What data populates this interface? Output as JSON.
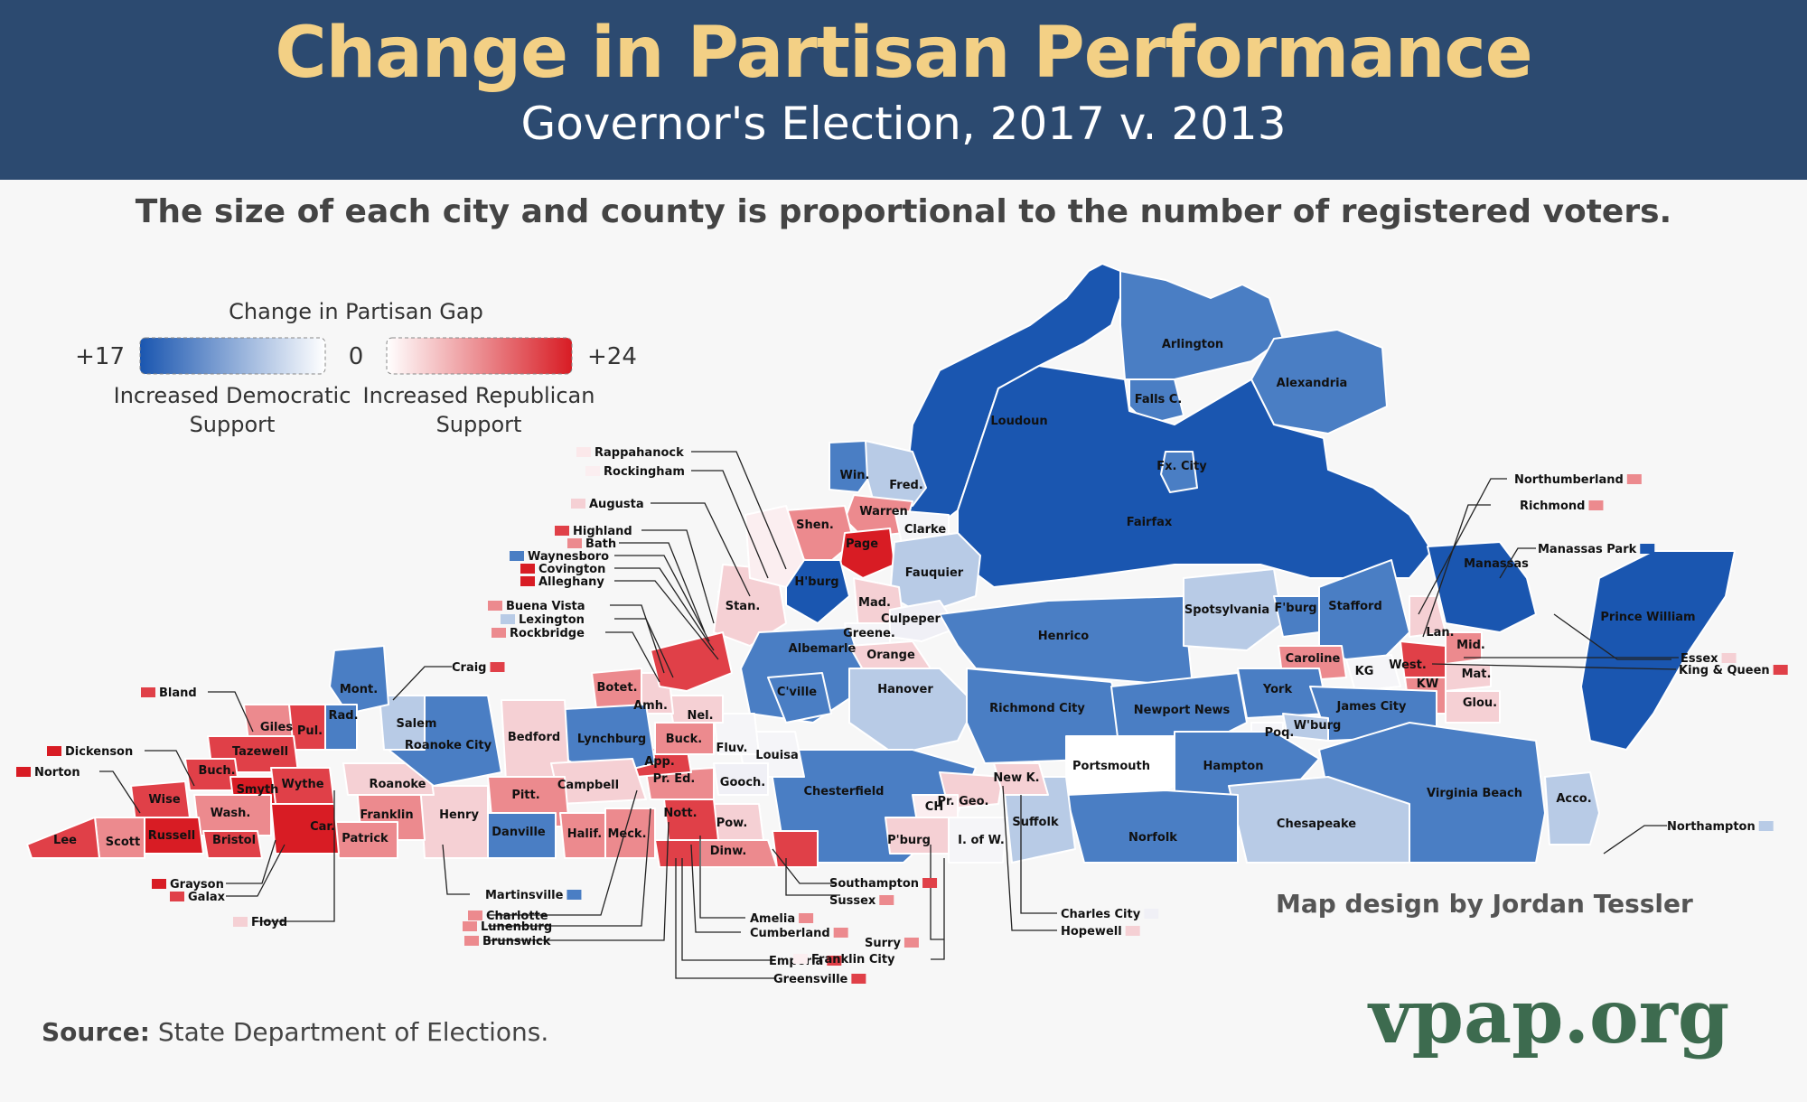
{
  "header": {
    "title": "Change in Partisan Performance",
    "subtitle": "Governor's Election, 2017 v. 2013"
  },
  "description": "The size of each city and county is proportional to the number of registered voters.",
  "legend": {
    "title": "Change in Partisan Gap",
    "dem_max": "+17",
    "zero": "0",
    "rep_max": "+24",
    "dem_line1": "Increased Democratic",
    "dem_line2": "Support",
    "rep_line1": "Increased Republican",
    "rep_line2": "Support"
  },
  "colors": {
    "dem_strong": "#1a56b0",
    "dem_mid": "#4a7ec4",
    "dem_light": "#b8cbe6",
    "neutral": "#ffffff",
    "rep_light": "#f5d0d4",
    "rep_mid": "#ec8a8e",
    "rep_strong": "#d81c24",
    "header_bg": "#2c4a70",
    "title": "#f3d085",
    "brand": "#3d6b4f"
  },
  "map_labels": [
    "Arlington",
    "Alexandria",
    "Falls C.",
    "Loudoun",
    "Fx. City",
    "Fairfax",
    "Win.",
    "Fred.",
    "Warren",
    "Shen.",
    "Clarke",
    "Page",
    "Fauquier",
    "H'burg",
    "Stan.",
    "Mad.",
    "Culpeper",
    "Greene.",
    "Albemarle",
    "Orange",
    "C'ville",
    "Henrico",
    "Spotsylvania",
    "F'burg",
    "Stafford",
    "Manassas",
    "Prince William",
    "Caroline",
    "KG",
    "Lan.",
    "Mid.",
    "West.",
    "KW",
    "Mat.",
    "Glou.",
    "York",
    "James City",
    "W'burg",
    "Poq.",
    "Hanover",
    "Richmond City",
    "Newport News",
    "Hampton",
    "Portsmouth",
    "Virginia Beach",
    "Acco.",
    "Chesapeake",
    "Norfolk",
    "Suffolk",
    "Chesterfield",
    "Louisa",
    "Fluv.",
    "Gooch.",
    "Pow.",
    "Dinw.",
    "Nott.",
    "Pr. Ed.",
    "App.",
    "Buck.",
    "Nel.",
    "Amh.",
    "Botet.",
    "Lynchburg",
    "Bedford",
    "Campbell",
    "Pitt.",
    "Halif.",
    "Meck.",
    "Danville",
    "Henry",
    "Franklin",
    "Patrick",
    "Roanoke",
    "Roanoke City",
    "Salem",
    "Mont.",
    "Rad.",
    "Giles",
    "Pul.",
    "Tazewell",
    "Buch.",
    "Wise",
    "Smyth",
    "Wythe",
    "Wash.",
    "Russell",
    "Lee",
    "Scott",
    "Bristol",
    "Car.",
    "Pr. Geo.",
    "New K.",
    "CH",
    "P'burg",
    "I. of W."
  ],
  "callouts": [
    {
      "text": "Rappahanock",
      "color": "#fbe8ea"
    },
    {
      "text": "Rockingham",
      "color": "#fbeef0"
    },
    {
      "text": "Augusta",
      "color": "#f5d0d4"
    },
    {
      "text": "Highland",
      "color": "#e04048"
    },
    {
      "text": "Bath",
      "color": "#ec8a8e"
    },
    {
      "text": "Waynesboro",
      "color": "#4a7ec4"
    },
    {
      "text": "Covington",
      "color": "#d81c24"
    },
    {
      "text": "Alleghany",
      "color": "#d81c24"
    },
    {
      "text": "Buena Vista",
      "color": "#ec8a8e"
    },
    {
      "text": "Lexington",
      "color": "#b8cbe6"
    },
    {
      "text": "Rockbridge",
      "color": "#ec8a8e"
    },
    {
      "text": "Craig",
      "color": "#e04048"
    },
    {
      "text": "Bland",
      "color": "#e04048"
    },
    {
      "text": "Dickenson",
      "color": "#d81c24"
    },
    {
      "text": "Norton",
      "color": "#d81c24"
    },
    {
      "text": "Grayson",
      "color": "#d81c24"
    },
    {
      "text": "Galax",
      "color": "#e04048"
    },
    {
      "text": "Floyd",
      "color": "#f5d0d4"
    },
    {
      "text": "Martinsville",
      "color": "#4a7ec4"
    },
    {
      "text": "Charlotte",
      "color": "#ec8a8e"
    },
    {
      "text": "Lunenburg",
      "color": "#ec8a8e"
    },
    {
      "text": "Brunswick",
      "color": "#ec8a8e"
    },
    {
      "text": "Amelia",
      "color": "#ec8a8e"
    },
    {
      "text": "Cumberland",
      "color": "#ec8a8e"
    },
    {
      "text": "Surry",
      "color": "#ec8a8e"
    },
    {
      "text": "Emporia",
      "color": "#e04048"
    },
    {
      "text": "Greensville",
      "color": "#e04048"
    },
    {
      "text": "Franklin City",
      "color": "#fbeef0"
    },
    {
      "text": "Southampton",
      "color": "#e04048"
    },
    {
      "text": "Sussex",
      "color": "#ec8a8e"
    },
    {
      "text": "Charles City",
      "color": "#f0f0f6"
    },
    {
      "text": "Hopewell",
      "color": "#f5d0d4"
    },
    {
      "text": "Northumberland",
      "color": "#ec8a8e"
    },
    {
      "text": "Richmond",
      "color": "#ec8a8e"
    },
    {
      "text": "Manassas Park",
      "color": "#1a56b0"
    },
    {
      "text": "Essex",
      "color": "#f5d0d4"
    },
    {
      "text": "King & Queen",
      "color": "#e04048"
    },
    {
      "text": "Northampton",
      "color": "#b8cbe6"
    }
  ],
  "credit": "Map design by Jordan Tessler",
  "source_label": "Source:",
  "source_text": " State Department of Elections.",
  "brand": "vpap.org"
}
